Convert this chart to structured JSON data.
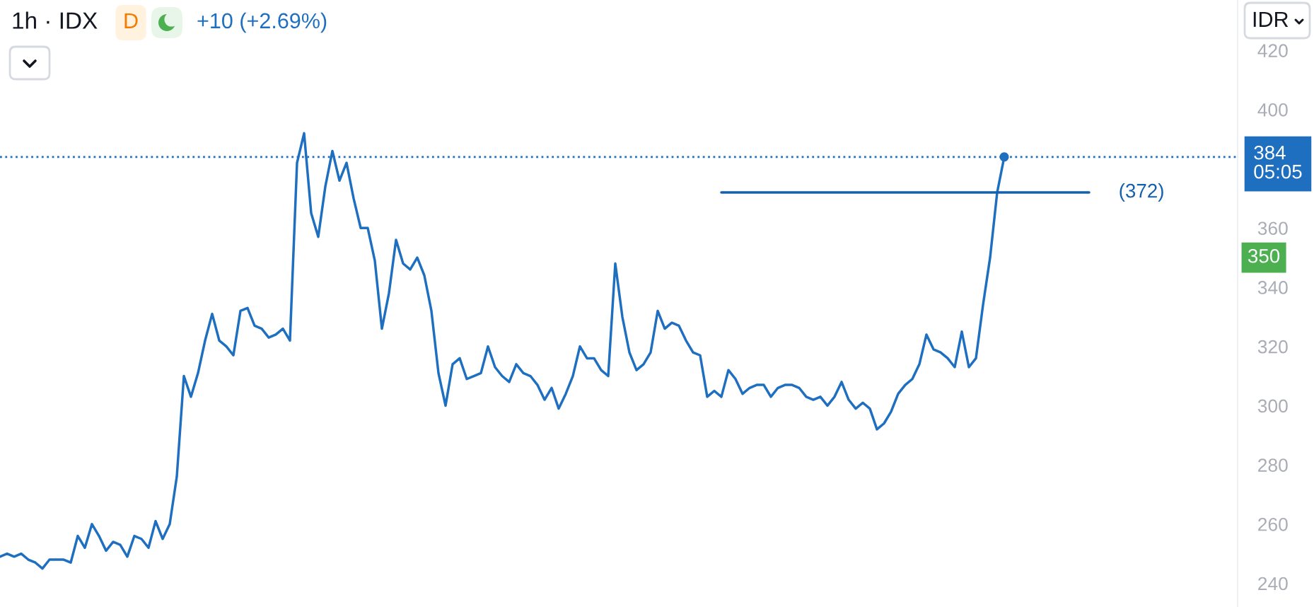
{
  "chart_data": {
    "type": "line",
    "title": "1h · IDX",
    "subtitle": "+10 (+2.69%)",
    "categories": [
      null,
      null,
      null,
      null,
      null,
      null,
      null,
      null,
      null,
      null,
      null,
      null,
      null,
      null,
      null,
      null,
      null,
      null,
      null,
      null,
      null,
      null,
      null,
      null,
      null,
      null,
      null,
      null,
      null,
      null,
      null,
      null,
      null,
      null,
      null,
      null,
      null,
      null,
      null,
      null,
      null,
      null,
      null,
      null,
      null,
      null,
      null,
      null,
      null,
      null,
      null,
      null,
      null,
      null,
      null,
      null,
      null,
      null,
      null,
      null,
      null,
      null,
      null,
      null,
      null,
      null,
      null,
      null,
      null,
      null,
      null,
      null,
      null,
      null,
      null,
      null,
      null,
      null,
      null,
      null,
      null,
      null,
      null,
      null,
      null,
      null,
      null,
      null,
      null,
      null,
      null,
      null,
      null,
      null,
      null,
      null,
      null,
      null,
      null,
      null,
      null,
      null,
      null,
      null,
      null,
      null,
      null,
      null,
      null,
      null,
      null,
      null,
      null,
      null,
      null,
      null,
      null,
      null,
      null,
      null,
      null,
      null,
      null,
      null,
      null,
      null,
      null,
      null,
      null,
      null,
      null,
      null,
      null,
      null,
      null,
      null,
      null,
      null,
      null,
      null,
      null,
      null,
      null,
      null,
      null,
      null,
      null,
      null,
      null,
      null,
      null,
      null,
      null,
      null,
      null,
      null,
      null,
      null,
      null,
      null,
      null,
      null,
      null,
      null,
      null,
      null,
      null,
      null,
      null,
      null,
      null,
      null,
      null,
      null,
      null,
      null
    ],
    "series": [
      {
        "color": "#1e6fbf",
        "values": [
          249,
          250,
          249,
          250,
          248,
          247,
          245,
          248,
          248,
          248,
          247,
          256,
          252,
          260,
          256,
          251,
          254,
          253,
          249,
          256,
          255,
          252,
          261,
          255,
          260,
          276,
          310,
          303,
          311,
          322,
          331,
          322,
          320,
          317,
          332,
          333,
          327,
          326,
          323,
          324,
          326,
          322,
          382,
          392,
          365,
          357,
          374,
          386,
          376,
          382,
          370,
          360,
          360,
          349,
          326,
          338,
          356,
          348,
          346,
          350,
          344,
          332,
          311,
          300,
          314,
          316,
          309,
          310,
          311,
          320,
          313,
          310,
          308,
          314,
          311,
          310,
          307,
          302,
          306,
          299,
          304,
          310,
          320,
          316,
          316,
          312,
          310,
          348,
          330,
          318,
          312,
          314,
          318,
          332,
          326,
          328,
          327,
          322,
          318,
          317,
          303,
          305,
          303,
          312,
          309,
          304,
          306,
          307,
          307,
          303,
          306,
          307,
          307,
          306,
          303,
          302,
          303,
          300,
          303,
          308,
          302,
          299,
          301,
          299,
          292,
          294,
          298,
          304,
          307,
          309,
          314,
          324,
          319,
          318,
          316,
          313,
          325,
          313,
          316,
          334,
          350,
          372,
          384,
          null,
          null,
          null,
          null,
          null,
          null,
          null,
          null,
          null,
          null,
          null,
          null,
          null,
          null,
          null,
          null,
          null,
          null,
          null,
          null,
          null,
          null,
          null,
          null,
          null,
          null,
          null,
          null,
          null,
          null,
          null,
          null,
          null
        ]
      },
      {
        "type": "line",
        "name": "(372)",
        "color": "#1560ad",
        "values": [
          null,
          null,
          null,
          null,
          null,
          null,
          null,
          null,
          null,
          null,
          null,
          null,
          null,
          null,
          null,
          null,
          null,
          null,
          null,
          null,
          null,
          null,
          null,
          null,
          null,
          null,
          null,
          null,
          null,
          null,
          null,
          null,
          null,
          null,
          null,
          null,
          null,
          null,
          null,
          null,
          null,
          null,
          null,
          null,
          null,
          null,
          null,
          null,
          null,
          null,
          null,
          null,
          null,
          null,
          null,
          null,
          null,
          null,
          null,
          null,
          null,
          null,
          null,
          null,
          null,
          null,
          null,
          null,
          null,
          null,
          null,
          null,
          null,
          null,
          null,
          null,
          null,
          null,
          null,
          null,
          null,
          null,
          null,
          null,
          null,
          null,
          null,
          null,
          null,
          null,
          null,
          null,
          null,
          null,
          null,
          null,
          null,
          null,
          null,
          null,
          null,
          null,
          372,
          372,
          372,
          372,
          372,
          372,
          372,
          372,
          372,
          372,
          372,
          372,
          372,
          372,
          372,
          372,
          372,
          372,
          372,
          372,
          372,
          372,
          372,
          372,
          372,
          372,
          372,
          372,
          372,
          372,
          372,
          372,
          372,
          372,
          372,
          372,
          372,
          372,
          372,
          372,
          372,
          372,
          372,
          372,
          372,
          372,
          372,
          372,
          372,
          372,
          372,
          372,
          372,
          null,
          null,
          null,
          null,
          null,
          null,
          null,
          null,
          null,
          null,
          null,
          null,
          null,
          null,
          null,
          null,
          null,
          null,
          null,
          null,
          null
        ]
      },
      {
        "type": "scatter",
        "color": "#1e6fbf",
        "values": [
          null,
          null,
          null,
          null,
          null,
          null,
          null,
          null,
          null,
          null,
          null,
          null,
          null,
          null,
          null,
          null,
          null,
          null,
          null,
          null,
          null,
          null,
          null,
          null,
          null,
          null,
          null,
          null,
          null,
          null,
          null,
          null,
          null,
          null,
          null,
          null,
          null,
          null,
          null,
          null,
          null,
          null,
          null,
          null,
          null,
          null,
          null,
          null,
          null,
          null,
          null,
          null,
          null,
          null,
          null,
          null,
          null,
          null,
          null,
          null,
          null,
          null,
          null,
          null,
          null,
          null,
          null,
          null,
          null,
          null,
          null,
          null,
          null,
          null,
          null,
          null,
          null,
          null,
          null,
          null,
          null,
          null,
          null,
          null,
          null,
          null,
          null,
          null,
          null,
          null,
          null,
          null,
          null,
          null,
          null,
          null,
          null,
          null,
          null,
          null,
          null,
          null,
          null,
          null,
          null,
          null,
          null,
          null,
          null,
          null,
          null,
          null,
          null,
          null,
          null,
          null,
          null,
          null,
          null,
          null,
          null,
          null,
          null,
          null,
          null,
          null,
          null,
          null,
          null,
          null,
          null,
          null,
          null,
          null,
          null,
          null,
          null,
          null,
          null,
          null,
          null,
          null,
          384,
          null,
          null,
          null,
          null,
          null,
          null,
          null,
          null,
          null,
          null,
          null,
          null,
          null,
          null,
          null,
          null,
          null,
          null,
          null,
          null,
          null,
          null,
          null,
          null,
          null,
          null,
          null,
          null,
          null,
          null,
          null,
          null,
          null
        ]
      }
    ],
    "ylim": [
      232,
      437
    ],
    "yticks": [
      240,
      260,
      280,
      300,
      320,
      340,
      360,
      400,
      420
    ],
    "tick_labels": "y",
    "ref_lines": [
      {
        "axis": "y",
        "value": 384,
        "label": "384\n05:05",
        "color": "#1e6fbf",
        "line_style": "dotted"
      }
    ],
    "annotations": [
      "D",
      "IDR",
      {
        "text": "350",
        "y": 350
      }
    ]
  }
}
